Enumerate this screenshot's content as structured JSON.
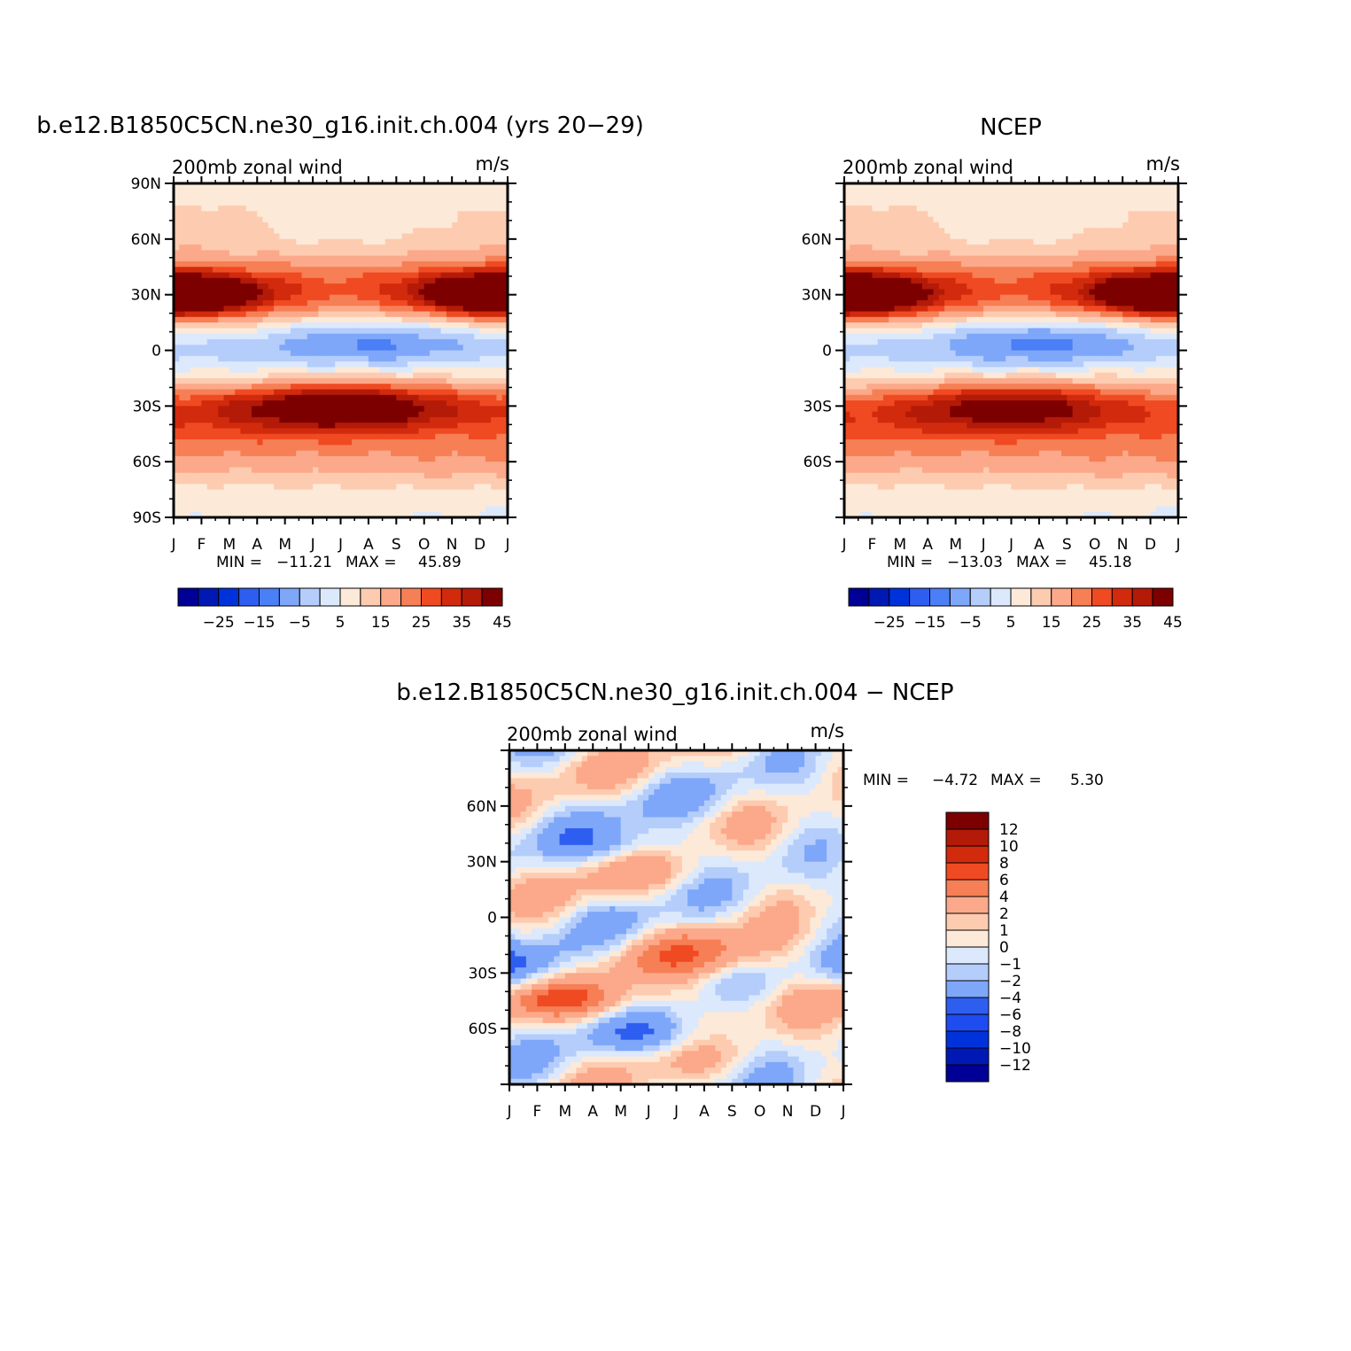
{
  "colors": {
    "abs_palette": [
      "#000096",
      "#0019b4",
      "#0032dc",
      "#2e5ef0",
      "#4a7ff5",
      "#7ea7fa",
      "#b4cdfa",
      "#dce9fc",
      "#fde9d8",
      "#fdcbb0",
      "#fba98a",
      "#f77f55",
      "#f04a23",
      "#d22a0c",
      "#b41a08",
      "#7d0000"
    ],
    "diff_palette": [
      "#000096",
      "#0019b4",
      "#0032dc",
      "#1f4cf0",
      "#2e5ef0",
      "#7ea7fa",
      "#b4cdfa",
      "#dce9fc",
      "#fde9d8",
      "#fdcbb0",
      "#fba98a",
      "#f77f55",
      "#f04a23",
      "#d22a0c",
      "#b41a08",
      "#7d0000"
    ]
  },
  "chart_data": [
    {
      "type": "heatmap",
      "title": "b.e12.B1850C5CN.ne30_g16.init.ch.004 (yrs 20−29)",
      "left_label": "200mb  zonal  wind",
      "right_label": "m/s",
      "x_ticks": [
        "J",
        "F",
        "M",
        "A",
        "M",
        "J",
        "J",
        "A",
        "S",
        "O",
        "N",
        "D",
        "J"
      ],
      "y_ticks": [
        "90N",
        "60N",
        "30N",
        "0",
        "30S",
        "60S",
        "90S"
      ],
      "ylim": [
        -90,
        90
      ],
      "stats": {
        "min_label": "MIN  =",
        "min_value": "−11.21",
        "max_label": "MAX  =",
        "max_value": "45.89"
      },
      "colorbar_labels": [
        "−25",
        "−15",
        "−5",
        "5",
        "15",
        "25",
        "35",
        "45"
      ],
      "levels": [
        -35,
        -30,
        -25,
        -20,
        -15,
        -10,
        -5,
        0,
        5,
        10,
        15,
        20,
        25,
        30,
        35,
        40,
        45
      ],
      "features": [
        {
          "kind": "jet",
          "lat": 30,
          "month": 0,
          "value": 45,
          "lat_width": 8,
          "month_width": 2
        },
        {
          "kind": "jet",
          "lat": 30,
          "month": 12,
          "value": 43,
          "lat_width": 8,
          "month_width": 2.5
        },
        {
          "kind": "jet",
          "lat": -30,
          "month": 6,
          "value": 45,
          "lat_width": 9,
          "month_width": 2.6
        },
        {
          "kind": "easterly",
          "lat": 5,
          "month": 7,
          "value": -11,
          "lat_width": 9,
          "month_width": 2.5
        }
      ]
    },
    {
      "type": "heatmap",
      "title": "NCEP",
      "left_label": "200mb  zonal  wind",
      "right_label": "m/s",
      "x_ticks": [
        "J",
        "F",
        "M",
        "A",
        "M",
        "J",
        "J",
        "A",
        "S",
        "O",
        "N",
        "D",
        "J"
      ],
      "y_ticks": [
        "60N",
        "30N",
        "0",
        "30S",
        "60S"
      ],
      "ylim": [
        -90,
        90
      ],
      "stats": {
        "min_label": "MIN  =",
        "min_value": "−13.03",
        "max_label": "MAX  =",
        "max_value": "45.18"
      },
      "colorbar_labels": [
        "−25",
        "−15",
        "−5",
        "5",
        "15",
        "25",
        "35",
        "45"
      ],
      "levels": [
        -35,
        -30,
        -25,
        -20,
        -15,
        -10,
        -5,
        0,
        5,
        10,
        15,
        20,
        25,
        30,
        35,
        40,
        45
      ],
      "features": [
        {
          "kind": "jet",
          "lat": 30,
          "month": 0,
          "value": 44,
          "lat_width": 8,
          "month_width": 2
        },
        {
          "kind": "jet",
          "lat": 30,
          "month": 12,
          "value": 43,
          "lat_width": 8,
          "month_width": 2.5
        },
        {
          "kind": "jet",
          "lat": -30,
          "month": 6,
          "value": 40,
          "lat_width": 9,
          "month_width": 2.8
        },
        {
          "kind": "easterly",
          "lat": 5,
          "month": 7,
          "value": -13,
          "lat_width": 9,
          "month_width": 2.5
        }
      ]
    },
    {
      "type": "heatmap",
      "title": "b.e12.B1850C5CN.ne30_g16.init.ch.004  −  NCEP",
      "left_label": "200mb  zonal  wind",
      "right_label": "m/s",
      "x_ticks": [
        "J",
        "F",
        "M",
        "A",
        "M",
        "J",
        "J",
        "A",
        "S",
        "O",
        "N",
        "D",
        "J"
      ],
      "y_ticks": [
        "60N",
        "30N",
        "0",
        "30S",
        "60S"
      ],
      "ylim": [
        -90,
        90
      ],
      "stats": {
        "min_label": "MIN  =",
        "min_value": "−4.72",
        "max_label": "MAX  =",
        "max_value": "5.30"
      },
      "colorbar_labels": [
        "12",
        "10",
        "8",
        "6",
        "4",
        "2",
        "1",
        "0",
        "−1",
        "−2",
        "−4",
        "−6",
        "−8",
        "−10",
        "−12"
      ],
      "levels": [
        -12,
        -10,
        -8,
        -6,
        -4,
        -2,
        -1,
        0,
        1,
        2,
        4,
        6,
        8,
        10,
        12
      ]
    }
  ]
}
